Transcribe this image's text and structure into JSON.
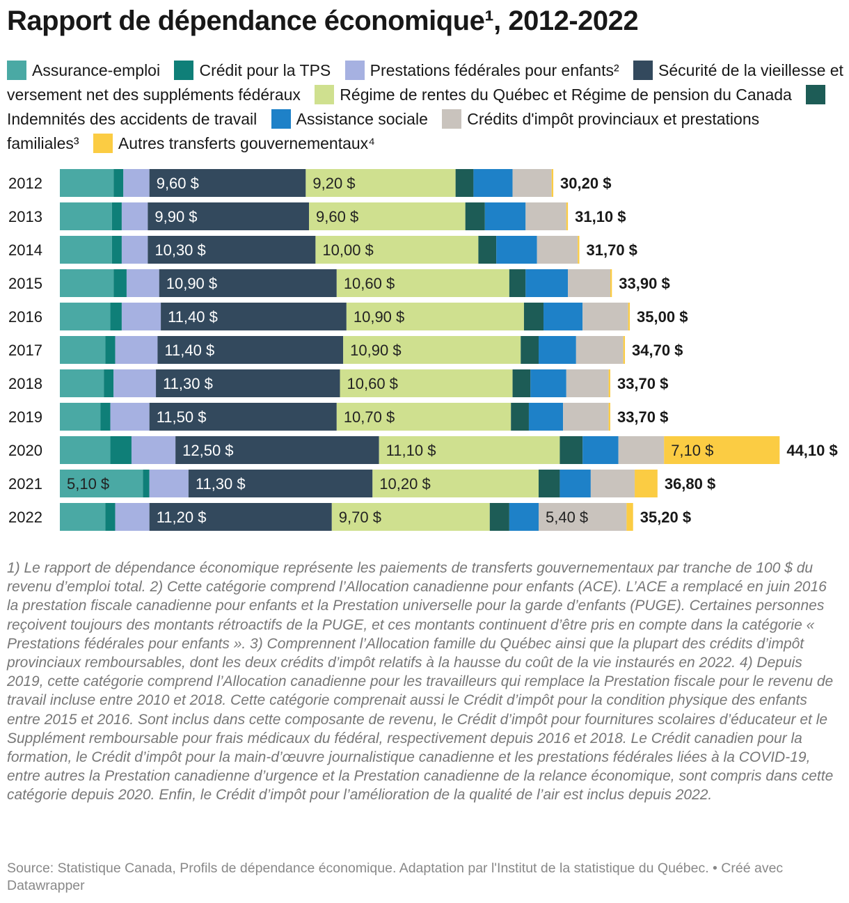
{
  "title": "Rapport de dépendance économique¹, 2012-2022",
  "legend": [
    {
      "label": "Assurance-emploi",
      "color": "#4aa9a4"
    },
    {
      "label": "Crédit pour la TPS",
      "color": "#0f7f78"
    },
    {
      "label": "Prestations fédérales pour enfants²",
      "color": "#a6b1e1"
    },
    {
      "label": "Sécurité de la vieillesse et versement net des suppléments fédéraux",
      "color": "#33495d"
    },
    {
      "label": "Régime de rentes du Québec et Régime de pension du Canada",
      "color": "#cfe08f"
    },
    {
      "label": "Indemnités des accidents de travail",
      "color": "#1d5c56"
    },
    {
      "label": "Assistance sociale",
      "color": "#1e81c8"
    },
    {
      "label": "Crédits d'impôt provinciaux et prestations familiales³",
      "color": "#c9c3bd"
    },
    {
      "label": "Autres transferts gouvernementaux⁴",
      "color": "#fbcc43"
    }
  ],
  "chart_data": {
    "type": "bar",
    "orientation": "horizontal",
    "stacked": true,
    "categories": [
      "2012",
      "2013",
      "2014",
      "2015",
      "2016",
      "2017",
      "2018",
      "2019",
      "2020",
      "2021",
      "2022"
    ],
    "series": [
      {
        "name": "Assurance-emploi",
        "values": [
          3.3,
          3.2,
          3.2,
          3.3,
          3.1,
          2.8,
          2.7,
          2.5,
          3.1,
          5.1,
          2.8
        ]
      },
      {
        "name": "Crédit pour la TPS",
        "values": [
          0.6,
          0.6,
          0.6,
          0.8,
          0.7,
          0.6,
          0.6,
          0.6,
          1.3,
          0.4,
          0.6
        ]
      },
      {
        "name": "Prestations fédérales pour enfants²",
        "values": [
          1.6,
          1.6,
          1.6,
          2.0,
          2.4,
          2.6,
          2.6,
          2.4,
          2.7,
          2.4,
          2.1
        ]
      },
      {
        "name": "Sécurité de la vieillesse et versement net des suppléments fédéraux",
        "values": [
          9.6,
          9.9,
          10.3,
          10.9,
          11.4,
          11.4,
          11.3,
          11.5,
          12.5,
          11.3,
          11.2
        ]
      },
      {
        "name": "Régime de rentes du Québec et Régime de pension du Canada",
        "values": [
          9.2,
          9.6,
          10.0,
          10.6,
          10.9,
          10.9,
          10.6,
          10.7,
          11.1,
          10.2,
          9.7
        ]
      },
      {
        "name": "Indemnités des accidents de travail",
        "values": [
          1.1,
          1.2,
          1.1,
          1.0,
          1.2,
          1.1,
          1.1,
          1.1,
          1.4,
          1.3,
          1.2
        ]
      },
      {
        "name": "Assistance sociale",
        "values": [
          2.4,
          2.5,
          2.5,
          2.6,
          2.4,
          2.3,
          2.2,
          2.1,
          2.2,
          1.9,
          1.8
        ]
      },
      {
        "name": "Crédits d'impôt provinciaux et prestations familiales³",
        "values": [
          2.4,
          2.5,
          2.5,
          2.6,
          2.8,
          2.9,
          2.6,
          2.8,
          2.8,
          2.7,
          5.4
        ]
      },
      {
        "name": "Autres transferts gouvernementaux⁴",
        "values": [
          0.1,
          0.1,
          0.1,
          0.1,
          0.1,
          0.1,
          0.1,
          0.1,
          7.1,
          1.4,
          0.4
        ]
      }
    ],
    "segment_labels": [
      [
        null,
        null,
        null,
        "9,60 $",
        "9,20 $",
        null,
        null,
        null,
        null
      ],
      [
        null,
        null,
        null,
        "9,90 $",
        "9,60 $",
        null,
        null,
        null,
        null
      ],
      [
        null,
        null,
        null,
        "10,30 $",
        "10,00 $",
        null,
        null,
        null,
        null
      ],
      [
        null,
        null,
        null,
        "10,90 $",
        "10,60 $",
        null,
        null,
        null,
        null
      ],
      [
        null,
        null,
        null,
        "11,40 $",
        "10,90 $",
        null,
        null,
        null,
        null
      ],
      [
        null,
        null,
        null,
        "11,40 $",
        "10,90 $",
        null,
        null,
        null,
        null
      ],
      [
        null,
        null,
        null,
        "11,30 $",
        "10,60 $",
        null,
        null,
        null,
        null
      ],
      [
        null,
        null,
        null,
        "11,50 $",
        "10,70 $",
        null,
        null,
        null,
        null
      ],
      [
        null,
        null,
        null,
        "12,50 $",
        "11,10 $",
        null,
        null,
        null,
        "7,10 $"
      ],
      [
        "5,10 $",
        null,
        null,
        "11,30 $",
        "10,20 $",
        null,
        null,
        null,
        null
      ],
      [
        null,
        null,
        null,
        "11,20 $",
        "9,70 $",
        null,
        null,
        "5,40 $",
        null
      ]
    ],
    "totals": [
      30.2,
      31.1,
      31.7,
      33.9,
      35.0,
      34.7,
      33.7,
      33.7,
      44.1,
      36.8,
      35.2
    ],
    "total_labels": [
      "30,20 $",
      "31,10 $",
      "31,70 $",
      "33,90 $",
      "35,00 $",
      "34,70 $",
      "33,70 $",
      "33,70 $",
      "44,10 $",
      "36,80 $",
      "35,20 $"
    ],
    "xlim": [
      0,
      44.1
    ],
    "legend_position": "top"
  },
  "notes": "1) Le rapport de dépendance économique représente les paiements de transferts gouvernementaux par tranche de 100 $ du revenu d’emploi total. 2) Cette catégorie comprend l’Allocation canadienne pour enfants (ACE). L’ACE a remplacé en juin 2016 la prestation fiscale canadienne pour enfants et la Prestation universelle pour la garde d’enfants (PUGE). Certaines personnes reçoivent toujours des montants rétroactifs de la PUGE, et ces montants continuent d’être pris en compte dans la catégorie « Prestations fédérales pour enfants ». 3) Comprennent l’Allocation famille du Québec ainsi que la plupart des crédits d’impôt provinciaux remboursables, dont les deux crédits d’impôt relatifs à la hausse du coût de la vie instaurés en 2022. 4) Depuis 2019, cette catégorie comprend l’Allocation canadienne pour les travailleurs qui remplace la Prestation fiscale pour le revenu de travail incluse entre 2010 et 2018. Cette catégorie comprenait aussi le Crédit d’impôt pour la condition physique des enfants entre 2015 et 2016. Sont inclus dans cette composante de revenu, le Crédit d’impôt pour fournitures scolaires d’éducateur et le Supplément remboursable pour frais médicaux du fédéral, respectivement depuis 2016 et 2018. Le Crédit canadien pour la formation, le Crédit d’impôt pour la main-d’œuvre journalistique canadienne et les prestations fédérales liées à la COVID-19, entre autres la Prestation canadienne d’urgence et la Prestation canadienne de la relance économique, sont compris dans cette catégorie depuis 2020. Enfin, le Crédit d’impôt pour l’amélioration de la qualité de l’air est inclus depuis 2022.",
  "source": "Source: Statistique Canada, Profils de dépendance économique. Adaptation par l'Institut de la statistique du Québec. • Créé avec Datawrapper"
}
